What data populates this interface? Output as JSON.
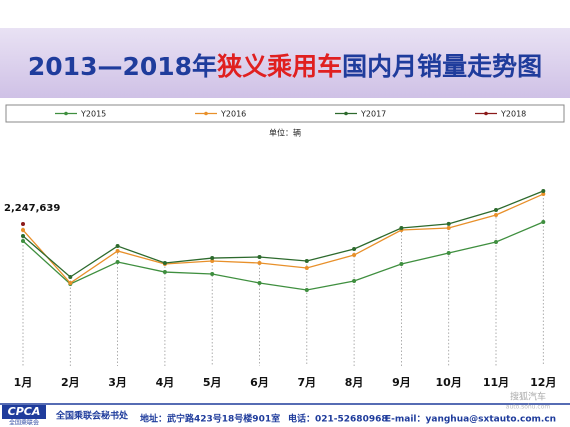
{
  "chart_data": {
    "type": "line",
    "title_parts": [
      "2013—2018年",
      "狭义乘用车",
      "国内月销量走势图"
    ],
    "subtitle": "单位：辆",
    "categories": [
      "1月",
      "2月",
      "3月",
      "4月",
      "5月",
      "6月",
      "7月",
      "8月",
      "9月",
      "10月",
      "11月",
      "12月"
    ],
    "series": [
      {
        "name": "Y2015",
        "color": "#3f8f3f",
        "values": [
          1990000,
          1339000,
          1672000,
          1520000,
          1490000,
          1354000,
          1248000,
          1384000,
          1642000,
          1808000,
          1975000,
          2278000
        ]
      },
      {
        "name": "Y2016",
        "color": "#e8902a",
        "values": [
          2157000,
          1354000,
          1839000,
          1642000,
          1687000,
          1657000,
          1581000,
          1778000,
          2157000,
          2187000,
          2384000,
          2702000
        ]
      },
      {
        "name": "Y2017",
        "color": "#2d6a2d",
        "values": [
          2066000,
          1445000,
          1914000,
          1657000,
          1732000,
          1748000,
          1687000,
          1869000,
          2187000,
          2250000,
          2460000,
          2748000
        ]
      },
      {
        "name": "Y2018",
        "color": "#8b1a1a",
        "values": [
          2247639,
          null,
          null,
          null,
          null,
          null,
          null,
          null,
          null,
          null,
          null,
          null
        ],
        "value_labels": [
          "2,247,639",
          null,
          null,
          null,
          null,
          null,
          null,
          null,
          null,
          null,
          null,
          null
        ]
      }
    ],
    "footer": {
      "logo": "CPCA",
      "logo_sub": "全国乘联会",
      "org": "全国乘联会秘书处",
      "address": "地址：武宁路423号18号楼901室",
      "phone": "电话：021-52680968",
      "email": "E-mail：yanghua@sxtauto.com.cn"
    },
    "watermark": [
      "搜狐汽车",
      "auto.sohu.com"
    ]
  }
}
